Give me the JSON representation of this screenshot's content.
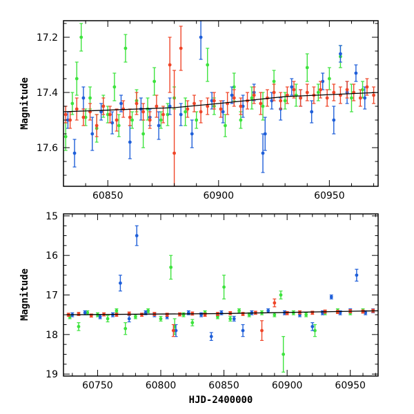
{
  "chart_data": [
    {
      "type": "scatter",
      "panel": "top",
      "title": "",
      "xlabel": "",
      "ylabel": "Magnitude",
      "xlim": [
        60830,
        60972
      ],
      "ylim": [
        17.74,
        17.14
      ],
      "y_inverted": true,
      "xticks": [
        "60850",
        "60900",
        "60950"
      ],
      "yticks": [
        "17.2",
        "17.4",
        "17.6"
      ],
      "trend": {
        "name": "trend",
        "color": "#000000",
        "x": [
          60830,
          60880,
          60900,
          60930,
          60972
        ],
        "y": [
          17.47,
          17.455,
          17.44,
          17.415,
          17.4
        ]
      },
      "series": [
        {
          "name": "green",
          "color": "#3de33d",
          "x": [
            60831,
            60834,
            60836,
            60838,
            60840,
            60842,
            60845,
            60848,
            60850,
            60853,
            60855,
            60858,
            60861,
            60863,
            60866,
            60868,
            60871,
            60874,
            60877,
            60880,
            60885,
            60890,
            60895,
            60898,
            60903,
            60907,
            60910,
            60915,
            60920,
            60925,
            60930,
            60935,
            60940,
            60945,
            60950,
            60955,
            60960,
            60965
          ],
          "y": [
            17.56,
            17.44,
            17.35,
            17.2,
            17.49,
            17.42,
            17.53,
            17.45,
            17.48,
            17.38,
            17.52,
            17.24,
            17.5,
            17.43,
            17.55,
            17.46,
            17.36,
            17.5,
            17.48,
            17.42,
            17.47,
            17.5,
            17.3,
            17.45,
            17.52,
            17.38,
            17.5,
            17.42,
            17.45,
            17.36,
            17.43,
            17.41,
            17.31,
            17.4,
            17.35,
            17.27,
            17.42,
            17.39
          ],
          "err": [
            0.05,
            0.04,
            0.06,
            0.05,
            0.03,
            0.04,
            0.05,
            0.04,
            0.03,
            0.05,
            0.04,
            0.05,
            0.03,
            0.04,
            0.05,
            0.04,
            0.05,
            0.03,
            0.04,
            0.04,
            0.05,
            0.03,
            0.06,
            0.03,
            0.04,
            0.05,
            0.03,
            0.04,
            0.05,
            0.04,
            0.03,
            0.04,
            0.05,
            0.03,
            0.04,
            0.04,
            0.05,
            0.03
          ]
        },
        {
          "name": "blue",
          "color": "#1f5fd9",
          "x": [
            60832,
            60835,
            60839,
            60843,
            60847,
            60852,
            60856,
            60860,
            60865,
            60869,
            60873,
            60878,
            60883,
            60888,
            60892,
            60897,
            60902,
            60906,
            60911,
            60916,
            60920,
            60921,
            60924,
            60928,
            60933,
            60937,
            60942,
            60947,
            60952,
            60955,
            60958,
            60962,
            60966
          ],
          "y": [
            17.5,
            17.62,
            17.42,
            17.55,
            17.47,
            17.51,
            17.44,
            17.58,
            17.46,
            17.49,
            17.52,
            17.45,
            17.48,
            17.55,
            17.2,
            17.43,
            17.47,
            17.41,
            17.45,
            17.4,
            17.62,
            17.55,
            17.43,
            17.46,
            17.38,
            17.42,
            17.47,
            17.36,
            17.5,
            17.26,
            17.4,
            17.33,
            17.42
          ],
          "err": [
            0.03,
            0.05,
            0.04,
            0.06,
            0.03,
            0.04,
            0.03,
            0.06,
            0.04,
            0.03,
            0.05,
            0.03,
            0.04,
            0.05,
            0.08,
            0.03,
            0.04,
            0.03,
            0.04,
            0.03,
            0.07,
            0.06,
            0.03,
            0.04,
            0.03,
            0.03,
            0.04,
            0.03,
            0.05,
            0.03,
            0.04,
            0.03,
            0.04
          ]
        },
        {
          "name": "red",
          "color": "#ef4528",
          "x": [
            60831,
            60833,
            60836,
            60839,
            60842,
            60845,
            60848,
            60851,
            60854,
            60857,
            60860,
            60863,
            60866,
            60869,
            60872,
            60875,
            60878,
            60880,
            60883,
            60886,
            60889,
            60892,
            60895,
            60898,
            60901,
            60904,
            60907,
            60910,
            60913,
            60916,
            60919,
            60922,
            60925,
            60928,
            60931,
            60934,
            60937,
            60940,
            60943,
            60946,
            60949,
            60952,
            60955,
            60958,
            60961,
            60964,
            60967,
            60970
          ],
          "y": [
            17.48,
            17.5,
            17.46,
            17.49,
            17.47,
            17.52,
            17.45,
            17.48,
            17.5,
            17.46,
            17.49,
            17.44,
            17.47,
            17.5,
            17.45,
            17.48,
            17.3,
            17.62,
            17.24,
            17.46,
            17.44,
            17.47,
            17.45,
            17.43,
            17.46,
            17.44,
            17.42,
            17.45,
            17.43,
            17.41,
            17.44,
            17.42,
            17.4,
            17.43,
            17.41,
            17.39,
            17.42,
            17.4,
            17.41,
            17.39,
            17.42,
            17.4,
            17.41,
            17.39,
            17.4,
            17.42,
            17.38,
            17.41
          ],
          "err": [
            0.03,
            0.03,
            0.04,
            0.03,
            0.03,
            0.04,
            0.03,
            0.03,
            0.04,
            0.03,
            0.03,
            0.04,
            0.03,
            0.03,
            0.04,
            0.03,
            0.1,
            0.3,
            0.08,
            0.03,
            0.03,
            0.04,
            0.03,
            0.03,
            0.03,
            0.04,
            0.03,
            0.03,
            0.03,
            0.03,
            0.04,
            0.03,
            0.03,
            0.03,
            0.03,
            0.03,
            0.03,
            0.03,
            0.03,
            0.03,
            0.03,
            0.03,
            0.03,
            0.03,
            0.03,
            0.03,
            0.03,
            0.03
          ]
        }
      ]
    },
    {
      "type": "scatter",
      "panel": "bottom",
      "title": "",
      "xlabel": "HJD-2400000",
      "ylabel": "Magnitude",
      "xlim": [
        60723,
        60972
      ],
      "ylim": [
        19.05,
        14.95
      ],
      "y_inverted": true,
      "xticks": [
        "60750",
        "60800",
        "60850",
        "60900",
        "60950"
      ],
      "yticks": [
        "15",
        "16",
        "17",
        "18",
        "19"
      ],
      "trend": {
        "name": "trend",
        "color": "#000000",
        "x": [
          60725,
          60850,
          60972
        ],
        "y": [
          17.5,
          17.47,
          17.4
        ]
      },
      "series": [
        {
          "name": "green",
          "color": "#3de33d",
          "x": [
            60728,
            60735,
            60742,
            60750,
            60758,
            60765,
            60772,
            60780,
            60790,
            60800,
            60808,
            60811,
            60818,
            60825,
            60835,
            60845,
            60850,
            60855,
            60862,
            60870,
            60880,
            60890,
            60895,
            60897,
            60905,
            60915,
            60922,
            60930,
            60940,
            60950,
            60960
          ],
          "y": [
            17.55,
            17.8,
            17.45,
            17.5,
            17.6,
            17.4,
            17.85,
            17.55,
            17.4,
            17.6,
            16.3,
            17.8,
            17.5,
            17.7,
            17.45,
            17.55,
            16.8,
            17.6,
            17.4,
            17.5,
            17.45,
            17.5,
            17.0,
            18.5,
            17.45,
            17.5,
            17.9,
            17.45,
            17.4,
            17.45,
            17.4
          ],
          "err": [
            0.05,
            0.1,
            0.05,
            0.05,
            0.08,
            0.05,
            0.15,
            0.05,
            0.05,
            0.06,
            0.3,
            0.2,
            0.05,
            0.08,
            0.05,
            0.05,
            0.3,
            0.06,
            0.05,
            0.05,
            0.05,
            0.05,
            0.1,
            0.45,
            0.05,
            0.05,
            0.15,
            0.05,
            0.05,
            0.05,
            0.05
          ]
        },
        {
          "name": "blue",
          "color": "#1f5fd9",
          "x": [
            60730,
            60740,
            60752,
            60762,
            60768,
            60775,
            60781,
            60788,
            60795,
            60805,
            60812,
            60822,
            60832,
            60840,
            60848,
            60858,
            60865,
            60872,
            60885,
            60898,
            60910,
            60920,
            60928,
            60935,
            60942,
            60950,
            60955,
            60962,
            60968
          ],
          "y": [
            17.5,
            17.45,
            17.55,
            17.5,
            16.7,
            17.6,
            15.5,
            17.45,
            17.5,
            17.55,
            17.9,
            17.45,
            17.5,
            18.05,
            17.45,
            17.6,
            17.9,
            17.45,
            17.4,
            17.45,
            17.5,
            17.8,
            17.45,
            17.05,
            17.45,
            17.4,
            16.5,
            17.45,
            17.4
          ],
          "err": [
            0.05,
            0.05,
            0.05,
            0.05,
            0.2,
            0.08,
            0.25,
            0.05,
            0.05,
            0.05,
            0.15,
            0.05,
            0.05,
            0.1,
            0.05,
            0.06,
            0.15,
            0.05,
            0.05,
            0.05,
            0.05,
            0.1,
            0.05,
            0.05,
            0.05,
            0.05,
            0.15,
            0.05,
            0.05
          ]
        },
        {
          "name": "red",
          "color": "#ef4528",
          "x": [
            60727,
            60735,
            60745,
            60755,
            60765,
            60775,
            60785,
            60795,
            60805,
            60810,
            60815,
            60825,
            60835,
            60845,
            60855,
            60865,
            60875,
            60880,
            60890,
            60900,
            60910,
            60920,
            60930,
            60940,
            60950,
            60960,
            60968
          ],
          "y": [
            17.5,
            17.48,
            17.52,
            17.49,
            17.5,
            17.47,
            17.5,
            17.48,
            17.5,
            17.9,
            17.49,
            17.47,
            17.5,
            17.48,
            17.46,
            17.48,
            17.45,
            17.9,
            17.2,
            17.46,
            17.44,
            17.45,
            17.42,
            17.43,
            17.41,
            17.42,
            17.4
          ],
          "err": [
            0.04,
            0.04,
            0.04,
            0.04,
            0.04,
            0.04,
            0.04,
            0.04,
            0.04,
            0.15,
            0.04,
            0.04,
            0.04,
            0.04,
            0.04,
            0.04,
            0.04,
            0.25,
            0.1,
            0.04,
            0.04,
            0.04,
            0.04,
            0.04,
            0.04,
            0.04,
            0.04
          ]
        }
      ]
    }
  ]
}
